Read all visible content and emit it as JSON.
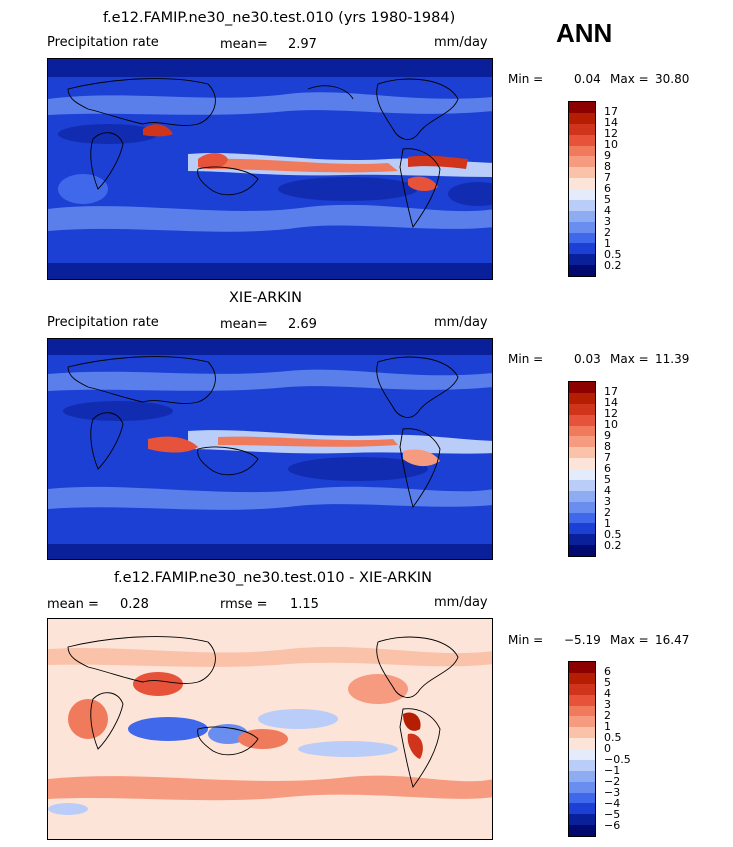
{
  "season": "ANN",
  "panels": [
    {
      "title": "f.e12.FAMIP.ne30_ne30.test.010 (yrs 1980-1984)",
      "left_label": "Precipitation rate",
      "mid_label": "mean=",
      "mid_value": "2.97",
      "units": "mm/day",
      "min_label": "Min =",
      "min_value": "0.04",
      "max_label": "Max =",
      "max_value": "30.80",
      "levels": [
        "17",
        "14",
        "12",
        "10",
        "9",
        "8",
        "7",
        "6",
        "5",
        "4",
        "3",
        "2",
        "1",
        "0.5",
        "0.2"
      ],
      "colors": [
        "#8c0000",
        "#b51e00",
        "#d0341a",
        "#e6523a",
        "#f07a5c",
        "#f79b80",
        "#fbc2aa",
        "#fde4d8",
        "#e4ecfc",
        "#b9cdf8",
        "#8eacf2",
        "#6a8ef0",
        "#3f68ea",
        "#1c40d4",
        "#0a1f9a",
        "#020a70"
      ]
    },
    {
      "title": "XIE-ARKIN",
      "left_label": "Precipitation rate",
      "mid_label": "mean=",
      "mid_value": "2.69",
      "units": "mm/day",
      "min_label": "Min =",
      "min_value": "0.03",
      "max_label": "Max =",
      "max_value": "11.39",
      "levels": [
        "17",
        "14",
        "12",
        "10",
        "9",
        "8",
        "7",
        "6",
        "5",
        "4",
        "3",
        "2",
        "1",
        "0.5",
        "0.2"
      ],
      "colors": [
        "#8c0000",
        "#b51e00",
        "#d0341a",
        "#e6523a",
        "#f07a5c",
        "#f79b80",
        "#fbc2aa",
        "#fde4d8",
        "#e4ecfc",
        "#b9cdf8",
        "#8eacf2",
        "#6a8ef0",
        "#3f68ea",
        "#1c40d4",
        "#0a1f9a",
        "#020a70"
      ]
    },
    {
      "title": "f.e12.FAMIP.ne30_ne30.test.010 - XIE-ARKIN",
      "left_label": "mean =",
      "left_value": "0.28",
      "mid_label": "rmse =",
      "mid_value": "1.15",
      "units": "mm/day",
      "min_label": "Min =",
      "min_value": "−5.19",
      "max_label": "Max =",
      "max_value": "16.47",
      "levels": [
        "6",
        "5",
        "4",
        "3",
        "2",
        "1",
        "0.5",
        "0",
        "−0.5",
        "−1",
        "−2",
        "−3",
        "−4",
        "−5",
        "−6"
      ],
      "colors": [
        "#8c0000",
        "#b51e00",
        "#d0341a",
        "#e6523a",
        "#f07a5c",
        "#f79b80",
        "#fbc2aa",
        "#fde4d8",
        "#e4ecfc",
        "#b9cdf8",
        "#8eacf2",
        "#6a8ef0",
        "#3f68ea",
        "#1c40d4",
        "#0a1f9a",
        "#020a70"
      ]
    }
  ]
}
